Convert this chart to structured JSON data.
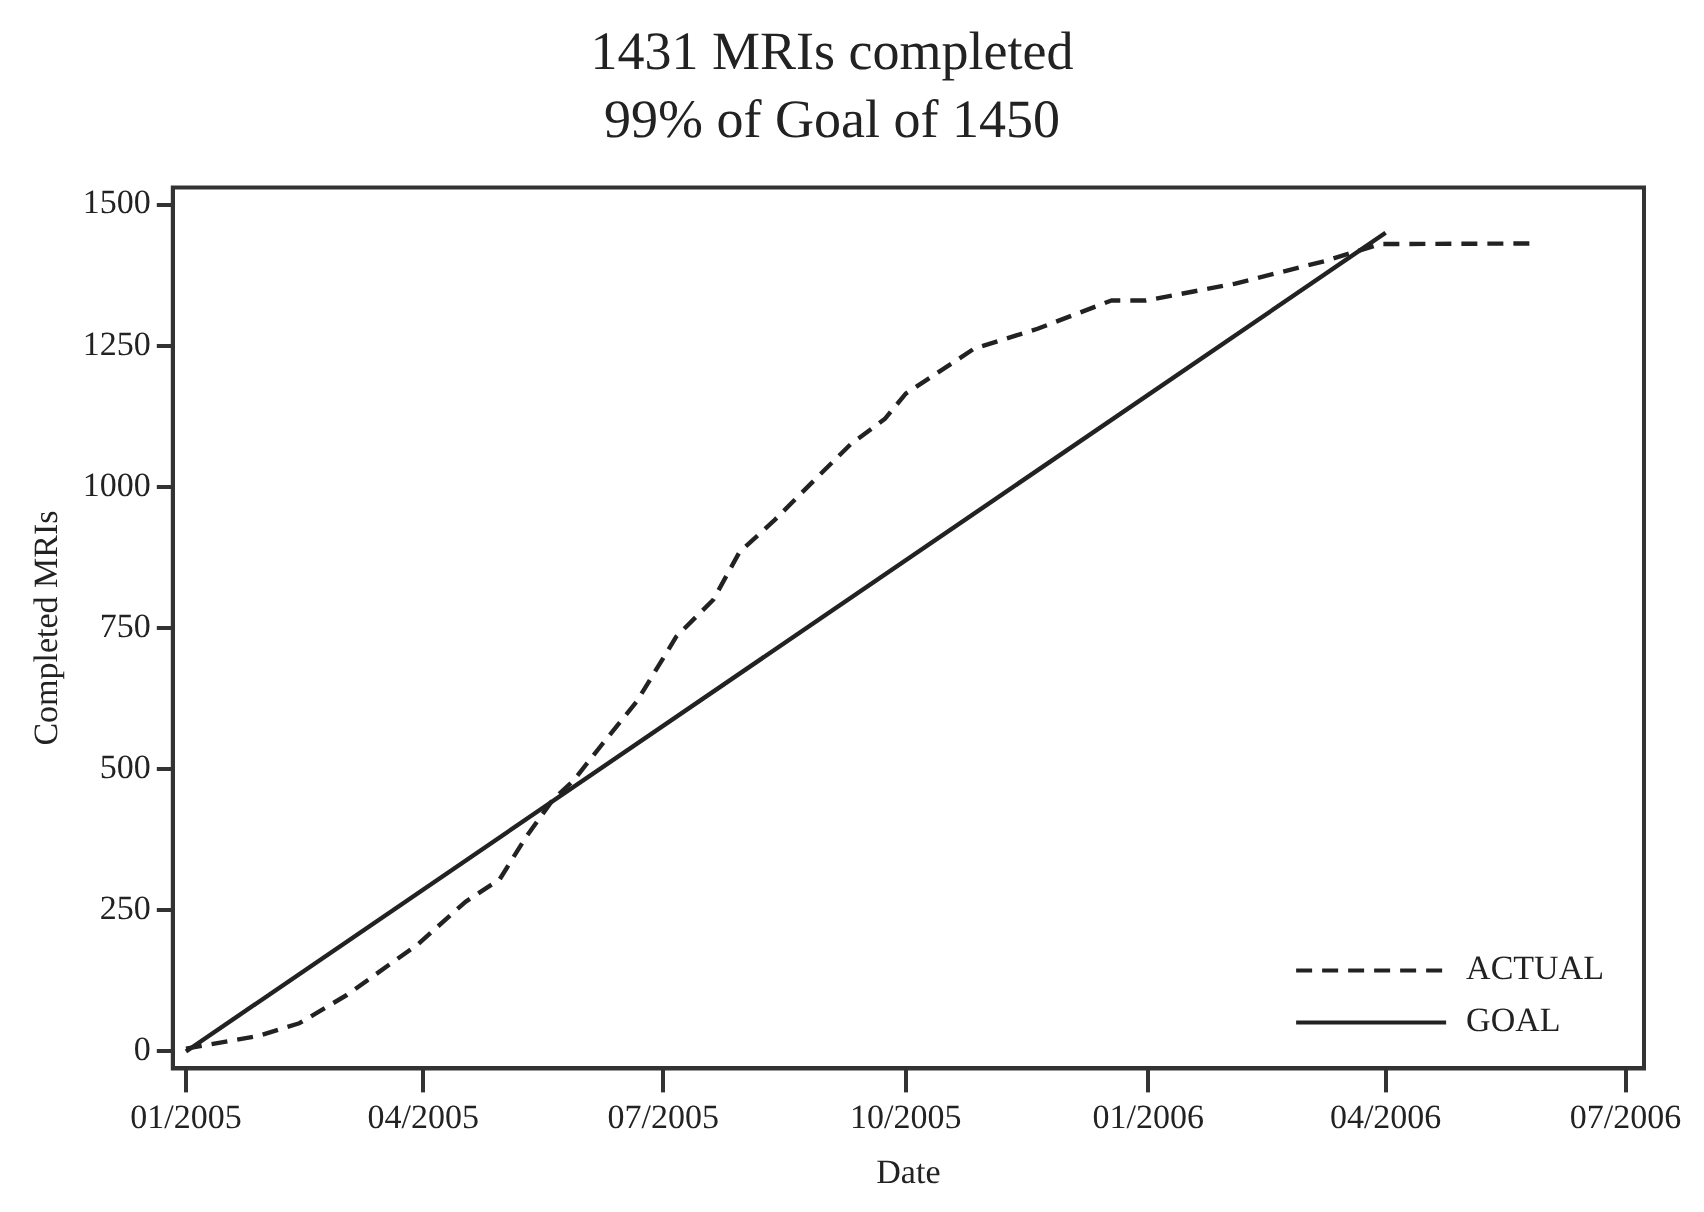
{
  "chart_data": {
    "type": "line",
    "title": "1431 MRIs completed",
    "subtitle": "99% of Goal of 1450",
    "xlabel": "Date",
    "ylabel": "Completed MRIs",
    "xlim": [
      "2004-12-27",
      "2006-07-08"
    ],
    "xticks": [
      {
        "value": "2005-01-01",
        "label": "01/2005"
      },
      {
        "value": "2005-04-01",
        "label": "04/2005"
      },
      {
        "value": "2005-07-01",
        "label": "07/2005"
      },
      {
        "value": "2005-10-01",
        "label": "10/2005"
      },
      {
        "value": "2006-01-01",
        "label": "01/2006"
      },
      {
        "value": "2006-04-01",
        "label": "04/2006"
      },
      {
        "value": "2006-07-01",
        "label": "07/2006"
      }
    ],
    "ylim": [
      -30,
      1530
    ],
    "yticks": [
      0,
      250,
      500,
      750,
      1000,
      1250,
      1500
    ],
    "legend": "bottom right",
    "marker": "none",
    "series": [
      {
        "name": "ACTUAL",
        "color": "#222222",
        "line_style": "dashed",
        "x": [
          "2005-01-01",
          "2005-01-28",
          "2005-02-13",
          "2005-03-03",
          "2005-03-30",
          "2005-04-17",
          "2005-04-30",
          "2005-05-10",
          "2005-05-20",
          "2005-05-28",
          "2005-06-08",
          "2005-06-21",
          "2005-07-06",
          "2005-07-20",
          "2005-07-30",
          "2005-08-12",
          "2005-08-28",
          "2005-09-10",
          "2005-09-23",
          "2005-10-01",
          "2005-10-14",
          "2005-10-27",
          "2005-11-20",
          "2005-12-18",
          "2005-12-31",
          "2006-02-03",
          "2006-03-09",
          "2006-03-30",
          "2006-05-27"
        ],
        "values": [
          5,
          27,
          50,
          100,
          190,
          265,
          305,
          380,
          445,
          480,
          545,
          620,
          735,
          800,
          885,
          940,
          1015,
          1075,
          1120,
          1165,
          1205,
          1245,
          1280,
          1330,
          1330,
          1360,
          1400,
          1430,
          1431
        ]
      },
      {
        "name": "GOAL",
        "color": "#222222",
        "line_style": "solid",
        "x": [
          "2005-01-01",
          "2006-04-01"
        ],
        "values": [
          0,
          1450
        ]
      }
    ]
  }
}
